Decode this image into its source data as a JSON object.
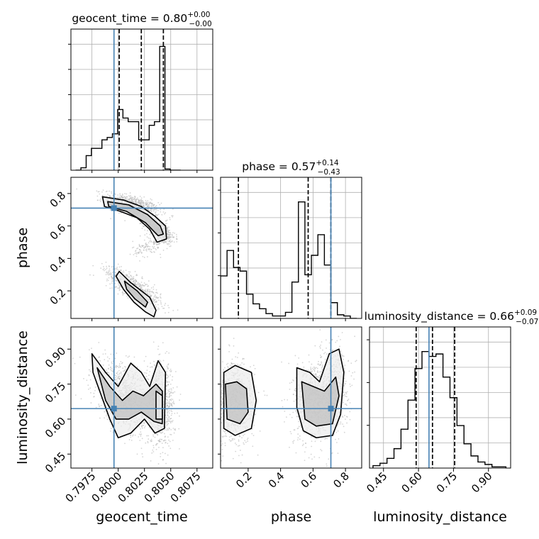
{
  "chart_data": {
    "type": "corner",
    "parameters": [
      "geocent_time",
      "phase",
      "luminosity_distance"
    ],
    "truths": {
      "geocent_time": 0.7996,
      "phase": 0.71,
      "luminosity_distance": 0.645
    },
    "axis_ranges": {
      "geocent_time": [
        0.7955,
        0.809
      ],
      "phase": [
        0.03,
        0.9
      ],
      "luminosity_distance": [
        0.39,
        0.995
      ]
    },
    "ticks": {
      "geocent_time": [
        "0.7975",
        "0.8000",
        "0.8025",
        "0.8050",
        "0.8075"
      ],
      "phase": [
        "0.2",
        "0.4",
        "0.6",
        "0.8"
      ],
      "luminosity_distance": [
        "0.45",
        "0.60",
        "0.75",
        "0.90"
      ]
    },
    "titles": [
      {
        "param": "geocent_time",
        "value": "0.80",
        "upper": "+0.00",
        "lower": "−0.00",
        "quantiles": [
          0.8001,
          0.8022,
          0.8043
        ]
      },
      {
        "param": "phase",
        "value": "0.57",
        "upper": "+0.14",
        "lower": "−0.43",
        "quantiles": [
          0.14,
          0.57,
          0.71
        ]
      },
      {
        "param": "luminosity_distance",
        "value": "0.66",
        "upper": "+0.09",
        "lower": "−0.07",
        "quantiles": [
          0.59,
          0.66,
          0.755
        ]
      }
    ],
    "histograms": {
      "geocent_time": {
        "x": [
          0.7962,
          0.7967,
          0.7972,
          0.7977,
          0.7982,
          0.7987,
          0.7992,
          0.7997,
          0.8002,
          0.8007,
          0.8012,
          0.8017,
          0.8022,
          0.8027,
          0.8032,
          0.8037,
          0.8042,
          0.8047,
          0.8052,
          0.8057
        ],
        "values": [
          0.0,
          0.02,
          0.12,
          0.18,
          0.18,
          0.25,
          0.27,
          0.3,
          0.5,
          0.43,
          0.4,
          0.4,
          0.25,
          0.25,
          0.37,
          0.4,
          1.02,
          0.01,
          0.0,
          0.0
        ]
      },
      "phase": {
        "x": [
          0.05,
          0.09,
          0.13,
          0.17,
          0.21,
          0.25,
          0.29,
          0.33,
          0.37,
          0.41,
          0.45,
          0.49,
          0.53,
          0.57,
          0.61,
          0.65,
          0.69,
          0.73,
          0.77,
          0.81,
          0.85
        ],
        "values": [
          0.35,
          0.56,
          0.42,
          0.39,
          0.2,
          0.12,
          0.08,
          0.04,
          0.02,
          0.02,
          0.05,
          0.3,
          0.96,
          0.36,
          0.52,
          0.69,
          0.44,
          0.13,
          0.03,
          0.02,
          0.0
        ]
      },
      "luminosity_distance": {
        "x": [
          0.42,
          0.45,
          0.48,
          0.51,
          0.54,
          0.57,
          0.6,
          0.63,
          0.66,
          0.69,
          0.72,
          0.75,
          0.78,
          0.81,
          0.84,
          0.87,
          0.9,
          0.93,
          0.96
        ],
        "values": [
          0.02,
          0.04,
          0.08,
          0.16,
          0.32,
          0.56,
          0.82,
          0.96,
          0.92,
          0.94,
          0.75,
          0.58,
          0.35,
          0.2,
          0.1,
          0.05,
          0.03,
          0.01,
          0.01
        ]
      }
    },
    "grid": true,
    "line_color": "#000000",
    "truth_color": "#4682b4",
    "scatter_color": "#b3b3b3"
  }
}
